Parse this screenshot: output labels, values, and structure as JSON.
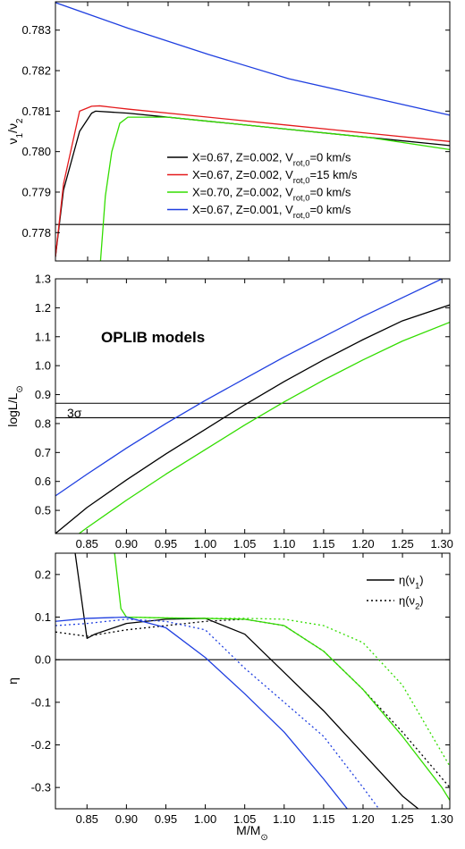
{
  "colors": {
    "black": "#000000",
    "red": "#e41a1c",
    "green": "#33dd00",
    "blue": "#1f3fe0"
  },
  "xlabel": {
    "main": "M/M",
    "sub": "⊙"
  },
  "chart_data": [
    {
      "type": "line",
      "ylabel": {
        "parts": [
          [
            "ν",
            ""
          ],
          [
            "1",
            "sub"
          ],
          [
            "/ν",
            ""
          ],
          [
            "2",
            "sub"
          ]
        ]
      },
      "xlim": [
        0.81,
        1.3
      ],
      "ylim": [
        0.7773,
        0.7837
      ],
      "yticks": [
        0.778,
        0.779,
        0.78,
        0.781,
        0.782,
        0.783
      ],
      "ytick_labels": [
        "0.778",
        "0.779",
        "0.780",
        "0.781",
        "0.782",
        "0.783"
      ],
      "show_xtick_labels": false,
      "hlines": [
        {
          "y": 0.7782,
          "color": "black"
        }
      ],
      "legend_position": "center-right",
      "series": [
        {
          "color": "black",
          "dash": "solid",
          "x": [
            0.81,
            0.82,
            0.84,
            0.855,
            0.86,
            0.9,
            1.0,
            1.1,
            1.2,
            1.3
          ],
          "y": [
            0.7774,
            0.77905,
            0.7805,
            0.78095,
            0.781,
            0.78095,
            0.78075,
            0.78055,
            0.78035,
            0.78015
          ]
        },
        {
          "color": "red",
          "dash": "solid",
          "x": [
            0.81,
            0.82,
            0.84,
            0.855,
            0.865,
            0.9,
            1.0,
            1.1,
            1.2,
            1.3
          ],
          "y": [
            0.7774,
            0.7792,
            0.781,
            0.78112,
            0.78113,
            0.78105,
            0.78085,
            0.78065,
            0.78045,
            0.78025
          ]
        },
        {
          "color": "green",
          "dash": "solid",
          "x": [
            0.866,
            0.872,
            0.88,
            0.89,
            0.9,
            0.95,
            1.0,
            1.1,
            1.2,
            1.3
          ],
          "y": [
            0.7773,
            0.7789,
            0.78,
            0.7807,
            0.78085,
            0.78085,
            0.78075,
            0.78055,
            0.78035,
            0.78005
          ]
        },
        {
          "color": "blue",
          "dash": "solid",
          "x": [
            0.81,
            0.9,
            1.0,
            1.1,
            1.2,
            1.3
          ],
          "y": [
            0.78368,
            0.78305,
            0.7824,
            0.7818,
            0.78135,
            0.7809
          ]
        }
      ],
      "legend": [
        {
          "color": "black",
          "parts": [
            [
              "X=0.67, Z=0.002, V",
              ""
            ],
            [
              "rot,0",
              "sub"
            ],
            [
              "=0 km/s",
              ""
            ]
          ]
        },
        {
          "color": "red",
          "parts": [
            [
              "X=0.67, Z=0.002, V",
              ""
            ],
            [
              "rot,0",
              "sub"
            ],
            [
              "=15 km/s",
              ""
            ]
          ]
        },
        {
          "color": "green",
          "parts": [
            [
              "X=0.70, Z=0.002, V",
              ""
            ],
            [
              "rot,0",
              "sub"
            ],
            [
              "=0 km/s",
              ""
            ]
          ]
        },
        {
          "color": "blue",
          "parts": [
            [
              "X=0.67, Z=0.001, V",
              ""
            ],
            [
              "rot,0",
              "sub"
            ],
            [
              "=0 km/s",
              ""
            ]
          ]
        }
      ]
    },
    {
      "type": "line",
      "ylabel": {
        "parts": [
          [
            "logL/L",
            ""
          ],
          [
            "⊙",
            "sub"
          ]
        ]
      },
      "annotation": "OPLIB models",
      "sigma_label": "3σ",
      "xlim": [
        0.81,
        1.31
      ],
      "ylim": [
        0.42,
        1.3
      ],
      "yticks": [
        0.5,
        0.6,
        0.7,
        0.8,
        0.9,
        1.0,
        1.1,
        1.2,
        1.3
      ],
      "ytick_labels": [
        "0.5",
        "0.6",
        "0.7",
        "0.8",
        "0.9",
        "1.0",
        "1.1",
        "1.2",
        "1.3"
      ],
      "xticks": [
        0.85,
        0.9,
        0.95,
        1.0,
        1.05,
        1.1,
        1.15,
        1.2,
        1.25,
        1.3
      ],
      "xtick_labels": [
        "0.85",
        "0.90",
        "0.95",
        "1.00",
        "1.05",
        "1.10",
        "1.15",
        "1.20",
        "1.25",
        "1.30"
      ],
      "show_xtick_labels": true,
      "hlines": [
        {
          "y": 0.87,
          "color": "black"
        },
        {
          "y": 0.82,
          "color": "black"
        }
      ],
      "series": [
        {
          "color": "blue",
          "dash": "solid",
          "x": [
            0.81,
            0.85,
            0.9,
            0.95,
            1.0,
            1.05,
            1.1,
            1.15,
            1.2,
            1.25,
            1.3
          ],
          "y": [
            0.55,
            0.625,
            0.715,
            0.8,
            0.88,
            0.955,
            1.03,
            1.1,
            1.17,
            1.235,
            1.3
          ]
        },
        {
          "color": "black",
          "dash": "solid",
          "x": [
            0.81,
            0.85,
            0.9,
            0.95,
            1.0,
            1.05,
            1.1,
            1.15,
            1.2,
            1.25,
            1.31
          ],
          "y": [
            0.42,
            0.51,
            0.605,
            0.695,
            0.78,
            0.865,
            0.945,
            1.02,
            1.09,
            1.155,
            1.21
          ]
        },
        {
          "color": "green",
          "dash": "solid",
          "x": [
            0.84,
            0.85,
            0.9,
            0.95,
            1.0,
            1.05,
            1.1,
            1.15,
            1.2,
            1.25,
            1.31
          ],
          "y": [
            0.42,
            0.44,
            0.535,
            0.625,
            0.71,
            0.795,
            0.875,
            0.95,
            1.02,
            1.085,
            1.15
          ]
        }
      ]
    },
    {
      "type": "line",
      "ylabel": {
        "parts": [
          [
            "η",
            ""
          ]
        ]
      },
      "xlim": [
        0.81,
        1.31
      ],
      "ylim": [
        -0.35,
        0.25
      ],
      "yticks": [
        -0.3,
        -0.2,
        -0.1,
        0.0,
        0.1,
        0.2
      ],
      "ytick_labels": [
        "-0.3",
        "-0.2",
        "-0.1",
        "0.0",
        "0.1",
        "0.2"
      ],
      "xticks": [
        0.85,
        0.9,
        0.95,
        1.0,
        1.05,
        1.1,
        1.15,
        1.2,
        1.25,
        1.3
      ],
      "xtick_labels": [
        "0.85",
        "0.90",
        "0.95",
        "1.00",
        "1.05",
        "1.10",
        "1.15",
        "1.20",
        "1.25",
        "1.30"
      ],
      "show_xtick_labels": true,
      "hlines": [
        {
          "y": 0.0,
          "color": "black"
        }
      ],
      "legend_position": "top-right",
      "series": [
        {
          "color": "black",
          "dash": "solid",
          "x": [
            0.835,
            0.85,
            0.86,
            0.9,
            0.95,
            1.0,
            1.05,
            1.1,
            1.15,
            1.2,
            1.25,
            1.27
          ],
          "y": [
            0.25,
            0.05,
            0.06,
            0.085,
            0.095,
            0.097,
            0.06,
            -0.03,
            -0.12,
            -0.22,
            -0.32,
            -0.35
          ]
        },
        {
          "color": "black",
          "dash": "dot",
          "x": [
            0.81,
            0.85,
            0.9,
            0.95,
            1.0,
            1.05,
            1.1,
            1.15,
            1.2,
            1.25,
            1.31
          ],
          "y": [
            0.065,
            0.055,
            0.07,
            0.08,
            0.09,
            0.095,
            0.08,
            0.02,
            -0.07,
            -0.17,
            -0.3
          ]
        },
        {
          "color": "green",
          "dash": "solid",
          "x": [
            0.885,
            0.893,
            0.9,
            0.95,
            1.0,
            1.05,
            1.1,
            1.15,
            1.2,
            1.25,
            1.3,
            1.31
          ],
          "y": [
            0.25,
            0.12,
            0.1,
            0.098,
            0.097,
            0.095,
            0.08,
            0.02,
            -0.07,
            -0.18,
            -0.3,
            -0.33
          ]
        },
        {
          "color": "green",
          "dash": "dot",
          "x": [
            0.9,
            0.95,
            1.0,
            1.05,
            1.1,
            1.15,
            1.2,
            1.25,
            1.31
          ],
          "y": [
            0.1,
            0.098,
            0.097,
            0.097,
            0.095,
            0.08,
            0.04,
            -0.06,
            -0.25
          ]
        },
        {
          "color": "blue",
          "dash": "solid",
          "x": [
            0.81,
            0.85,
            0.9,
            0.95,
            1.0,
            1.05,
            1.1,
            1.15,
            1.18
          ],
          "y": [
            0.09,
            0.097,
            0.1,
            0.075,
            0.005,
            -0.08,
            -0.17,
            -0.28,
            -0.35
          ]
        },
        {
          "color": "blue",
          "dash": "dot",
          "x": [
            0.81,
            0.85,
            0.9,
            0.95,
            1.0,
            1.05,
            1.1,
            1.15,
            1.2,
            1.22
          ],
          "y": [
            0.08,
            0.085,
            0.095,
            0.09,
            0.07,
            -0.02,
            -0.1,
            -0.18,
            -0.3,
            -0.35
          ]
        }
      ],
      "legend": [
        {
          "color": "black",
          "dash": "solid",
          "parts": [
            [
              "η(ν",
              ""
            ],
            [
              "1",
              "sub"
            ],
            [
              ")",
              ""
            ]
          ]
        },
        {
          "color": "black",
          "dash": "dot",
          "parts": [
            [
              "η(ν",
              ""
            ],
            [
              "2",
              "sub"
            ],
            [
              ")",
              ""
            ]
          ]
        }
      ]
    }
  ]
}
